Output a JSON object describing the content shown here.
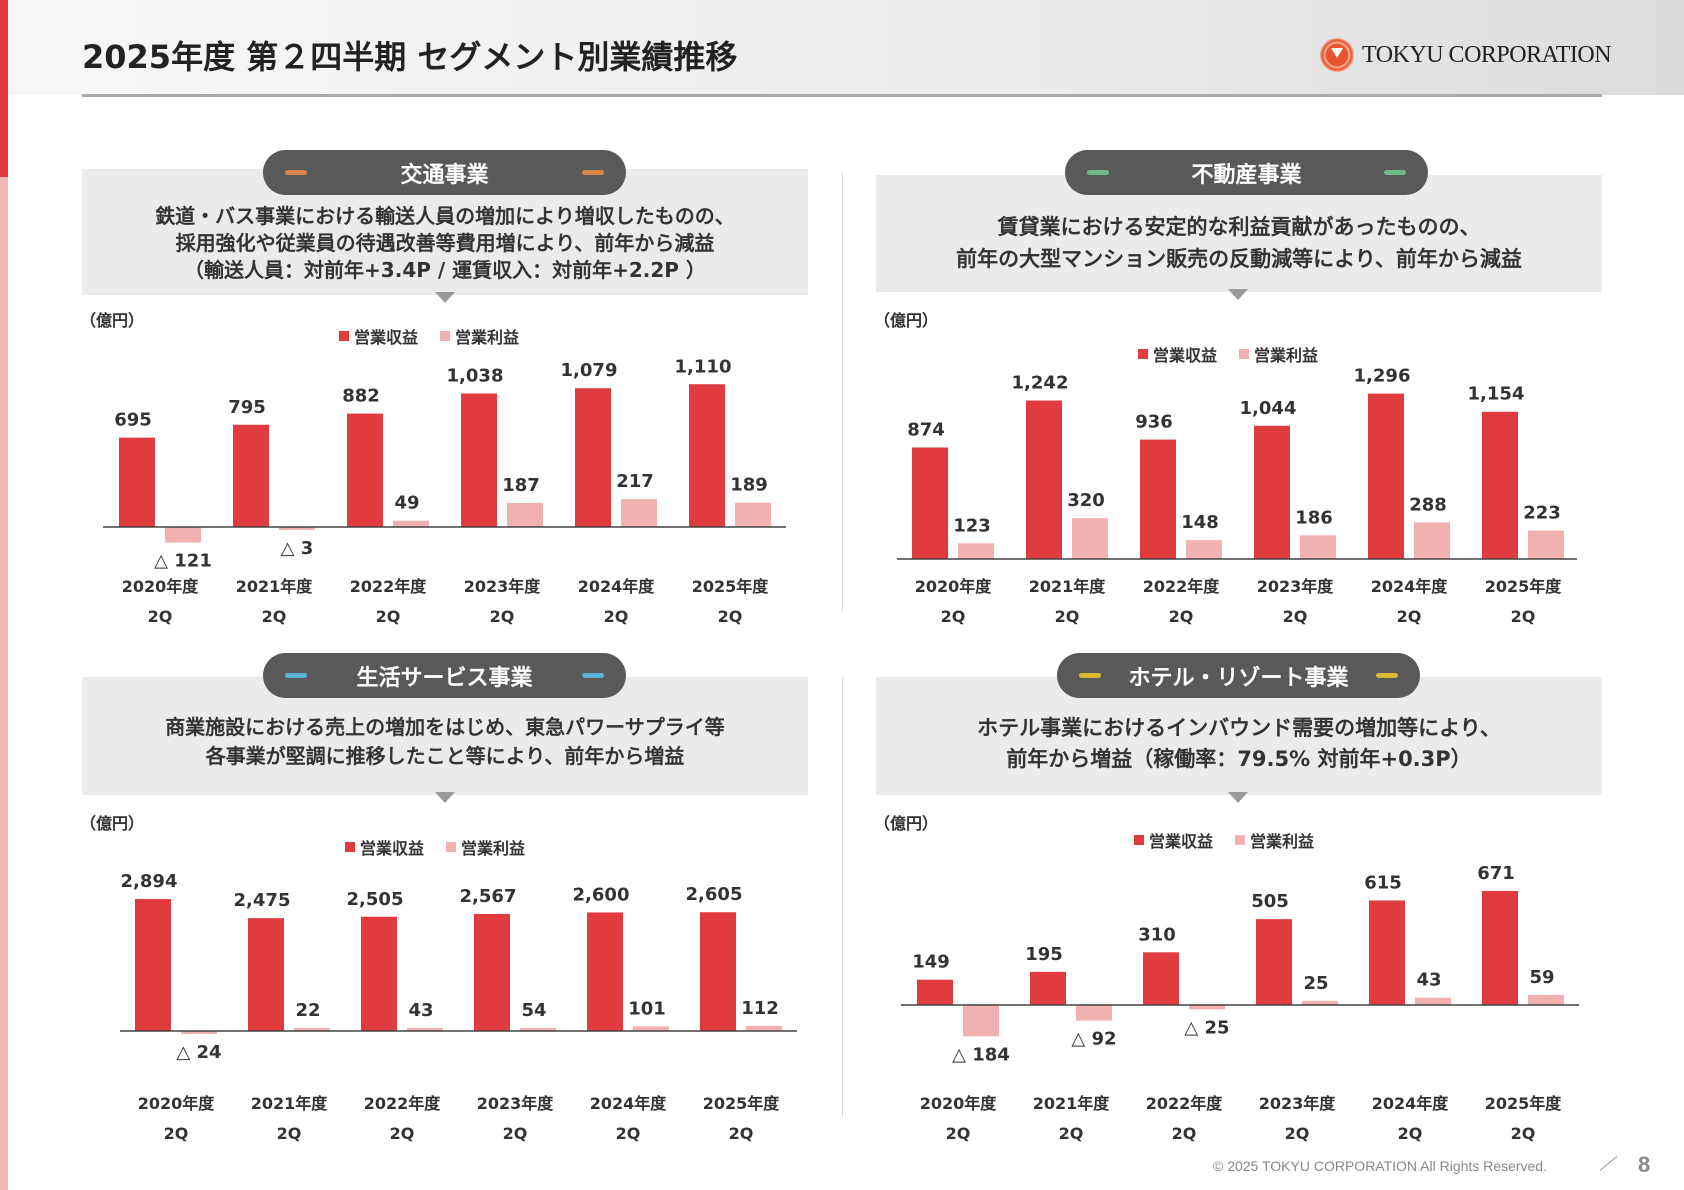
{
  "header": {
    "title": "2025年度 第２四半期 セグメント別業績推移",
    "logo_text": "TOKYU CORPORATION"
  },
  "legend": {
    "revenue": "営業収益",
    "profit": "営業利益"
  },
  "unit": "（億円）",
  "negative_prefix": "△ ",
  "colors": {
    "revenue": "#e03c3f",
    "profit": "#f2b1b1",
    "accent": "#e23a3a"
  },
  "categories": [
    [
      "2020年度",
      "2Q"
    ],
    [
      "2021年度",
      "2Q"
    ],
    [
      "2022年度",
      "2Q"
    ],
    [
      "2023年度",
      "2Q"
    ],
    [
      "2024年度",
      "2Q"
    ],
    [
      "2025年度",
      "2Q"
    ]
  ],
  "segments": [
    {
      "title": "交通事業",
      "accent": "#d9874f",
      "description": [
        "鉄道・バス事業における輸送人員の増加により増収したものの、",
        "採用強化や従業員の待遇改善等費用増により、前年から減益",
        "（輸送人員：対前年+3.4P / 運賃収入：対前年+2.2P ）"
      ],
      "chart_data": {
        "type": "bar",
        "series": [
          {
            "name": "営業収益",
            "values": [
              695,
              795,
              882,
              1038,
              1079,
              1110
            ]
          },
          {
            "name": "営業利益",
            "values": [
              -121,
              -3,
              49,
              187,
              217,
              189
            ]
          }
        ]
      }
    },
    {
      "title": "不動産事業",
      "accent": "#6fb88a",
      "description": [
        "賃貸業における安定的な利益貢献があったものの、",
        "前年の大型マンション販売の反動減等により、前年から減益"
      ],
      "chart_data": {
        "type": "bar",
        "series": [
          {
            "name": "営業収益",
            "values": [
              874,
              1242,
              936,
              1044,
              1296,
              1154
            ]
          },
          {
            "name": "営業利益",
            "values": [
              123,
              320,
              148,
              186,
              288,
              223
            ]
          }
        ]
      }
    },
    {
      "title": "生活サービス事業",
      "accent": "#5bb0d6",
      "description": [
        "商業施設における売上の増加をはじめ、東急パワーサプライ等",
        "各事業が堅調に推移したこと等により、前年から増益"
      ],
      "chart_data": {
        "type": "bar",
        "series": [
          {
            "name": "営業収益",
            "values": [
              2894,
              2475,
              2505,
              2567,
              2600,
              2605
            ]
          },
          {
            "name": "営業利益",
            "values": [
              -24,
              22,
              43,
              54,
              101,
              112
            ]
          }
        ]
      }
    },
    {
      "title": "ホテル・リゾート事業",
      "accent": "#d9b830",
      "description": [
        "ホテル事業におけるインバウンド需要の増加等により、",
        "前年から増益（稼働率：79.5% 対前年+0.3P）"
      ],
      "chart_data": {
        "type": "bar",
        "series": [
          {
            "name": "営業収益",
            "values": [
              149,
              195,
              310,
              505,
              615,
              671
            ]
          },
          {
            "name": "営業利益",
            "values": [
              -184,
              -92,
              -25,
              25,
              43,
              59
            ]
          }
        ]
      }
    }
  ],
  "footer": {
    "copyright": "© 2025 TOKYU CORPORATION All Rights Reserved.",
    "page_number": "8"
  }
}
